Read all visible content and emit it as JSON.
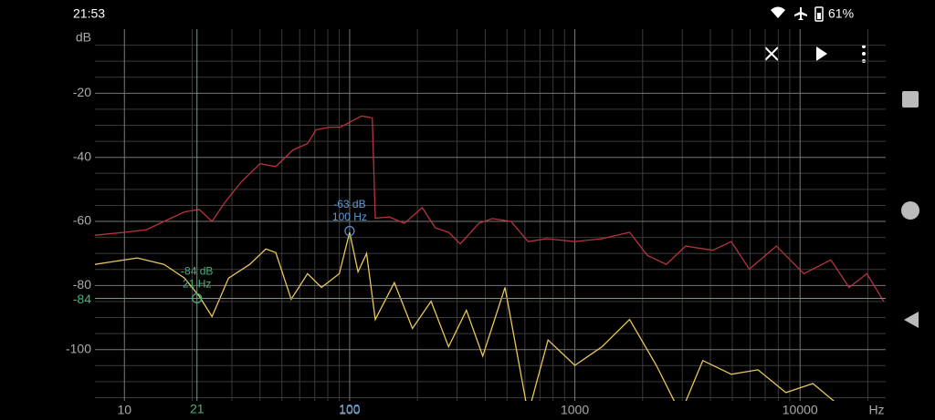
{
  "status_bar": {
    "time": "21:53",
    "battery": "61%"
  },
  "chart_data": {
    "type": "line",
    "y_unit": "dB",
    "x_unit": "Hz",
    "xscale": "log",
    "xlim": [
      7.4,
      24000
    ],
    "xticks": [
      10,
      100,
      1000,
      10000
    ],
    "xminor": [
      20,
      30,
      40,
      50,
      60,
      70,
      80,
      90,
      200,
      300,
      400,
      500,
      600,
      700,
      800,
      900,
      2000,
      3000,
      4000,
      5000,
      6000,
      7000,
      8000,
      9000,
      20000
    ],
    "ylim": [
      -116,
      0
    ],
    "yticks": [
      -20,
      -40,
      -60,
      -80,
      -100
    ],
    "yminor": [
      -5,
      -10,
      -15,
      -25,
      -30,
      -35,
      -45,
      -50,
      -55,
      -65,
      -70,
      -75,
      -85,
      -90,
      -95,
      -105,
      -110,
      -115
    ],
    "grid": true,
    "series": [
      {
        "color": "#b5343f",
        "x": [
          7.4,
          10,
          12.5,
          15,
          18.5,
          21.5,
          24.5,
          28,
          33,
          40,
          47,
          56,
          65,
          71,
          82,
          91,
          103,
          113,
          126,
          130,
          150,
          175,
          210,
          240,
          275,
          310,
          375,
          430,
          520,
          620,
          750,
          1000,
          1320,
          1750,
          2100,
          2550,
          3100,
          4100,
          4950,
          5950,
          7850,
          10400,
          13700,
          16500,
          19800,
          23500
        ],
        "values": [
          -64.3,
          -63.4,
          -62.6,
          -60,
          -57,
          -56.3,
          -60,
          -54,
          -47.7,
          -42,
          -42.9,
          -37.7,
          -35.7,
          -31.4,
          -30.6,
          -30.6,
          -28.6,
          -27.1,
          -27.7,
          -59,
          -58.6,
          -60.6,
          -55.7,
          -62,
          -63.4,
          -67,
          -60.6,
          -59.1,
          -60,
          -66.3,
          -65.4,
          -66.3,
          -65.4,
          -63.4,
          -70.6,
          -73.4,
          -67.7,
          -69,
          -66.3,
          -74.9,
          -67.7,
          -76.3,
          -72,
          -80.6,
          -76.3,
          -84.9
        ]
      },
      {
        "color": "#e8c65c",
        "x": [
          7.4,
          11.4,
          15,
          18.5,
          21.5,
          24.5,
          29,
          36,
          42.5,
          47,
          55,
          65,
          75,
          90,
          100,
          109,
          119,
          130,
          158,
          190,
          230,
          275,
          330,
          390,
          490,
          620,
          760,
          1000,
          1320,
          1750,
          2300,
          2950,
          3700,
          4950,
          6500,
          8650,
          11400,
          16500,
          23500
        ],
        "values": [
          -73.4,
          -71.4,
          -73.4,
          -77.7,
          -83.4,
          -89.7,
          -77.7,
          -73.4,
          -68.6,
          -69.7,
          -84.3,
          -76.3,
          -80.6,
          -76.3,
          -63.4,
          -75.7,
          -70,
          -90.6,
          -79.1,
          -93.4,
          -84.9,
          -99.1,
          -87.7,
          -102,
          -80.6,
          -120,
          -97,
          -104.9,
          -99.1,
          -90.6,
          -104.9,
          -120,
          -103.4,
          -107.7,
          -106.3,
          -113.4,
          -110.6,
          -120,
          -120
        ]
      }
    ],
    "markers": [
      {
        "x": 21,
        "y": -84,
        "labels": [
          "-84 dB",
          "21 Hz"
        ],
        "color": "#4caf7d",
        "crosshair": true
      },
      {
        "x": 100,
        "y": -63,
        "labels": [
          "-63 dB",
          "100 Hz"
        ],
        "color": "#5b9bd5",
        "crosshair": false
      }
    ]
  }
}
